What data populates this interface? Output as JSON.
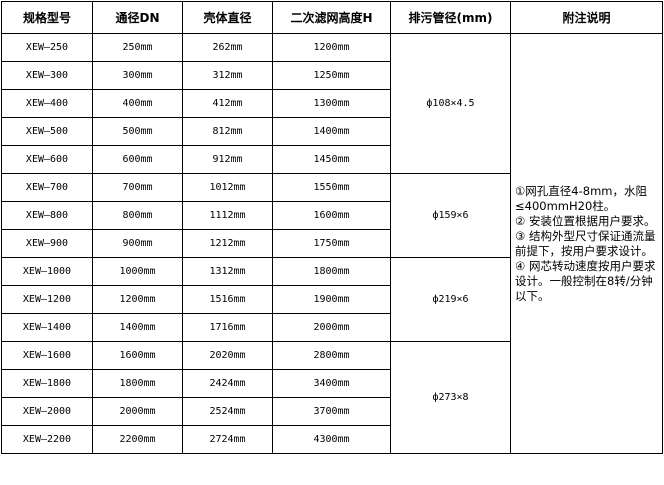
{
  "headers": [
    "规格型号",
    "通径DN",
    "壳体直径",
    "二次滤网高度H",
    "排污管径(mm)",
    "附注说明"
  ],
  "rows": [
    [
      "XEW—250",
      "250mm",
      "262mm",
      "1200mm"
    ],
    [
      "XEW—300",
      "300mm",
      "312mm",
      "1250mm"
    ],
    [
      "XEW—400",
      "400mm",
      "412mm",
      "1300mm"
    ],
    [
      "XEW—500",
      "500mm",
      "812mm",
      "1400mm"
    ],
    [
      "XEW—600",
      "600mm",
      "912mm",
      "1450mm"
    ],
    [
      "XEW—700",
      "700mm",
      "1012mm",
      "1550mm"
    ],
    [
      "XEW—800",
      "800mm",
      "1112mm",
      "1600mm"
    ],
    [
      "XEW—900",
      "900mm",
      "1212mm",
      "1750mm"
    ],
    [
      "XEW—1000",
      "1000mm",
      "1312mm",
      "1800mm"
    ],
    [
      "XEW—1200",
      "1200mm",
      "1516mm",
      "1900mm"
    ],
    [
      "XEW—1400",
      "1400mm",
      "1716mm",
      "2000mm"
    ],
    [
      "XEW—1600",
      "1600mm",
      "2020mm",
      "2800mm"
    ],
    [
      "XEW—1800",
      "1800mm",
      "2424mm",
      "3400mm"
    ],
    [
      "XEW—2000",
      "2000mm",
      "2524mm",
      "3700mm"
    ],
    [
      "XEW—2200",
      "2200mm",
      "2724mm",
      "4300mm"
    ]
  ],
  "drain_groups": [
    {
      "value": "ф108×4.5",
      "span": 5
    },
    {
      "value": "ф159×6",
      "span": 3
    },
    {
      "value": "ф219×6",
      "span": 3
    },
    {
      "value": "ф273×8",
      "span": 4
    }
  ],
  "notes": [
    "①网孔直径4-8mm，水阻≤400mmH20柱。",
    "② 安装位置根据用户要求。",
    "③ 结构外型尺寸保证通流量前提下，按用户要求设计。",
    "④ 网芯转动速度按用户要求设计。一般控制在8转/分钟以下。"
  ]
}
